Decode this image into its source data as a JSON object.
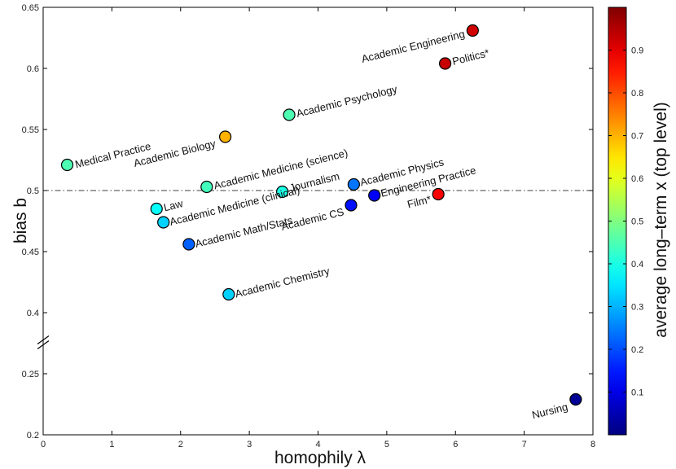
{
  "chart_data": {
    "type": "scatter",
    "xlabel": "homophily λ",
    "ylabel": "bias b",
    "xlim": [
      0,
      8
    ],
    "ylim_upper": [
      0.4,
      0.65
    ],
    "ylim_lower": [
      0.2,
      0.25
    ],
    "y_axis_broken": true,
    "reference_line_y": 0.5,
    "x_ticks": [
      "0",
      "1",
      "2",
      "3",
      "4",
      "5",
      "6",
      "7",
      "8"
    ],
    "y_ticks": [
      "0.2",
      "0.25",
      "0.4",
      "0.45",
      "0.5",
      "0.55",
      "0.6",
      "0.65"
    ],
    "colorbar": {
      "label": "average long–term x (top level)",
      "range": [
        0,
        1
      ],
      "ticks": [
        "0.1",
        "0.2",
        "0.3",
        "0.4",
        "0.5",
        "0.6",
        "0.7",
        "0.8",
        "0.9"
      ],
      "colormap": "jet"
    },
    "points": [
      {
        "label": "Medical Practice",
        "x": 0.35,
        "y": 0.521,
        "c": 0.45
      },
      {
        "label": "Academic Biology",
        "x": 2.65,
        "y": 0.544,
        "c": 0.7
      },
      {
        "label": "Academic Psychology",
        "x": 3.58,
        "y": 0.562,
        "c": 0.45
      },
      {
        "label": "Academic Engineering",
        "x": 6.25,
        "y": 0.631,
        "c": 0.92
      },
      {
        "label": "Politics*",
        "x": 5.85,
        "y": 0.604,
        "c": 0.93
      },
      {
        "label": "Academic Medicine (science)",
        "x": 2.38,
        "y": 0.503,
        "c": 0.44
      },
      {
        "label": "Law",
        "x": 1.65,
        "y": 0.485,
        "c": 0.38
      },
      {
        "label": "Academic Medicine (clinical)",
        "x": 1.75,
        "y": 0.474,
        "c": 0.33
      },
      {
        "label": "Journalism",
        "x": 3.48,
        "y": 0.499,
        "c": 0.4
      },
      {
        "label": "Academic Physics",
        "x": 4.52,
        "y": 0.505,
        "c": 0.24
      },
      {
        "label": "Engineering Practice",
        "x": 4.82,
        "y": 0.496,
        "c": 0.12
      },
      {
        "label": "Academic CS",
        "x": 4.48,
        "y": 0.488,
        "c": 0.14
      },
      {
        "label": "Film*",
        "x": 5.75,
        "y": 0.497,
        "c": 0.88
      },
      {
        "label": "Academic Math/Stats",
        "x": 2.12,
        "y": 0.456,
        "c": 0.22
      },
      {
        "label": "Academic Chemistry",
        "x": 2.7,
        "y": 0.415,
        "c": 0.33
      },
      {
        "label": "Nursing",
        "x": 7.75,
        "y": 0.229,
        "c": 0.02
      }
    ]
  }
}
